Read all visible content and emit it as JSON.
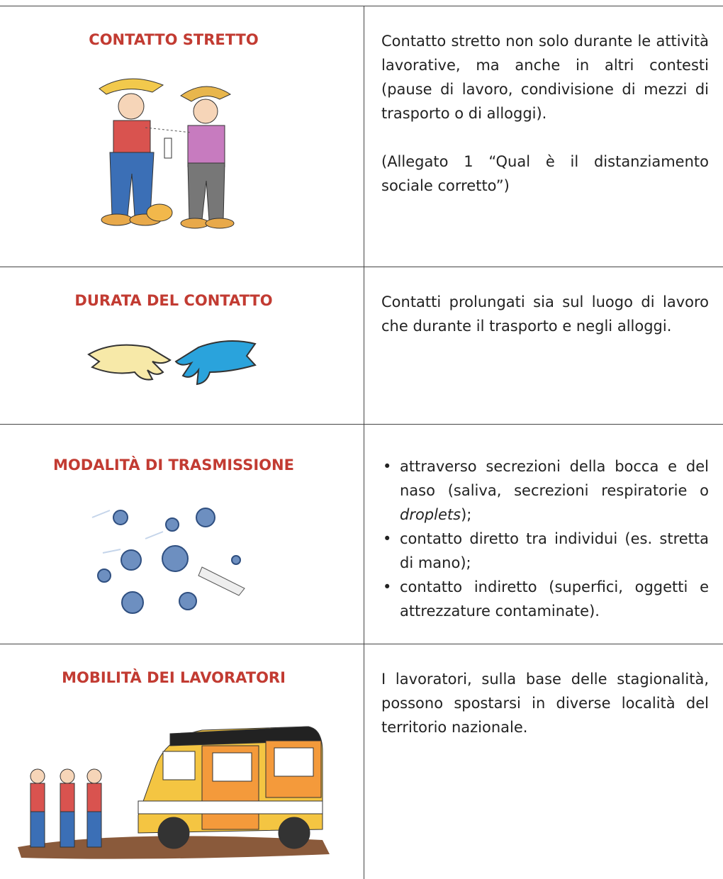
{
  "rows": [
    {
      "title": "CONTATTO STRETTO",
      "paragraphs": [
        "Contatto stretto non solo durante le attività lavorative, ma anche in altri contesti (pause di lavoro, condivisione di mezzi di trasporto o di alloggi).",
        "(Allegato 1 “Qual è il distanziamento sociale corretto”)"
      ]
    },
    {
      "title": "DURATA DEL CONTATTO",
      "paragraphs": [
        "Contatti prolungati sia sul luogo di lavoro che durante il trasporto e negli alloggi."
      ]
    },
    {
      "title": "MODALITÀ DI TRASMISSIONE",
      "bullets": [
        [
          "attraverso secrezioni della bocca e del naso (saliva, secrezioni respiratorie o ",
          "droplets",
          ");"
        ],
        [
          "contatto diretto tra individui (es. stretta di mano);"
        ],
        [
          "contatto indiretto (superfici, oggetti e attrezzature contaminate)."
        ]
      ]
    },
    {
      "title": "MOBILITÀ DEI LAVORATORI",
      "paragraphs": [
        "I lavoratori, sulla base delle stagionalità, possono spostarsi in diverse località del territorio nazionale."
      ]
    }
  ]
}
